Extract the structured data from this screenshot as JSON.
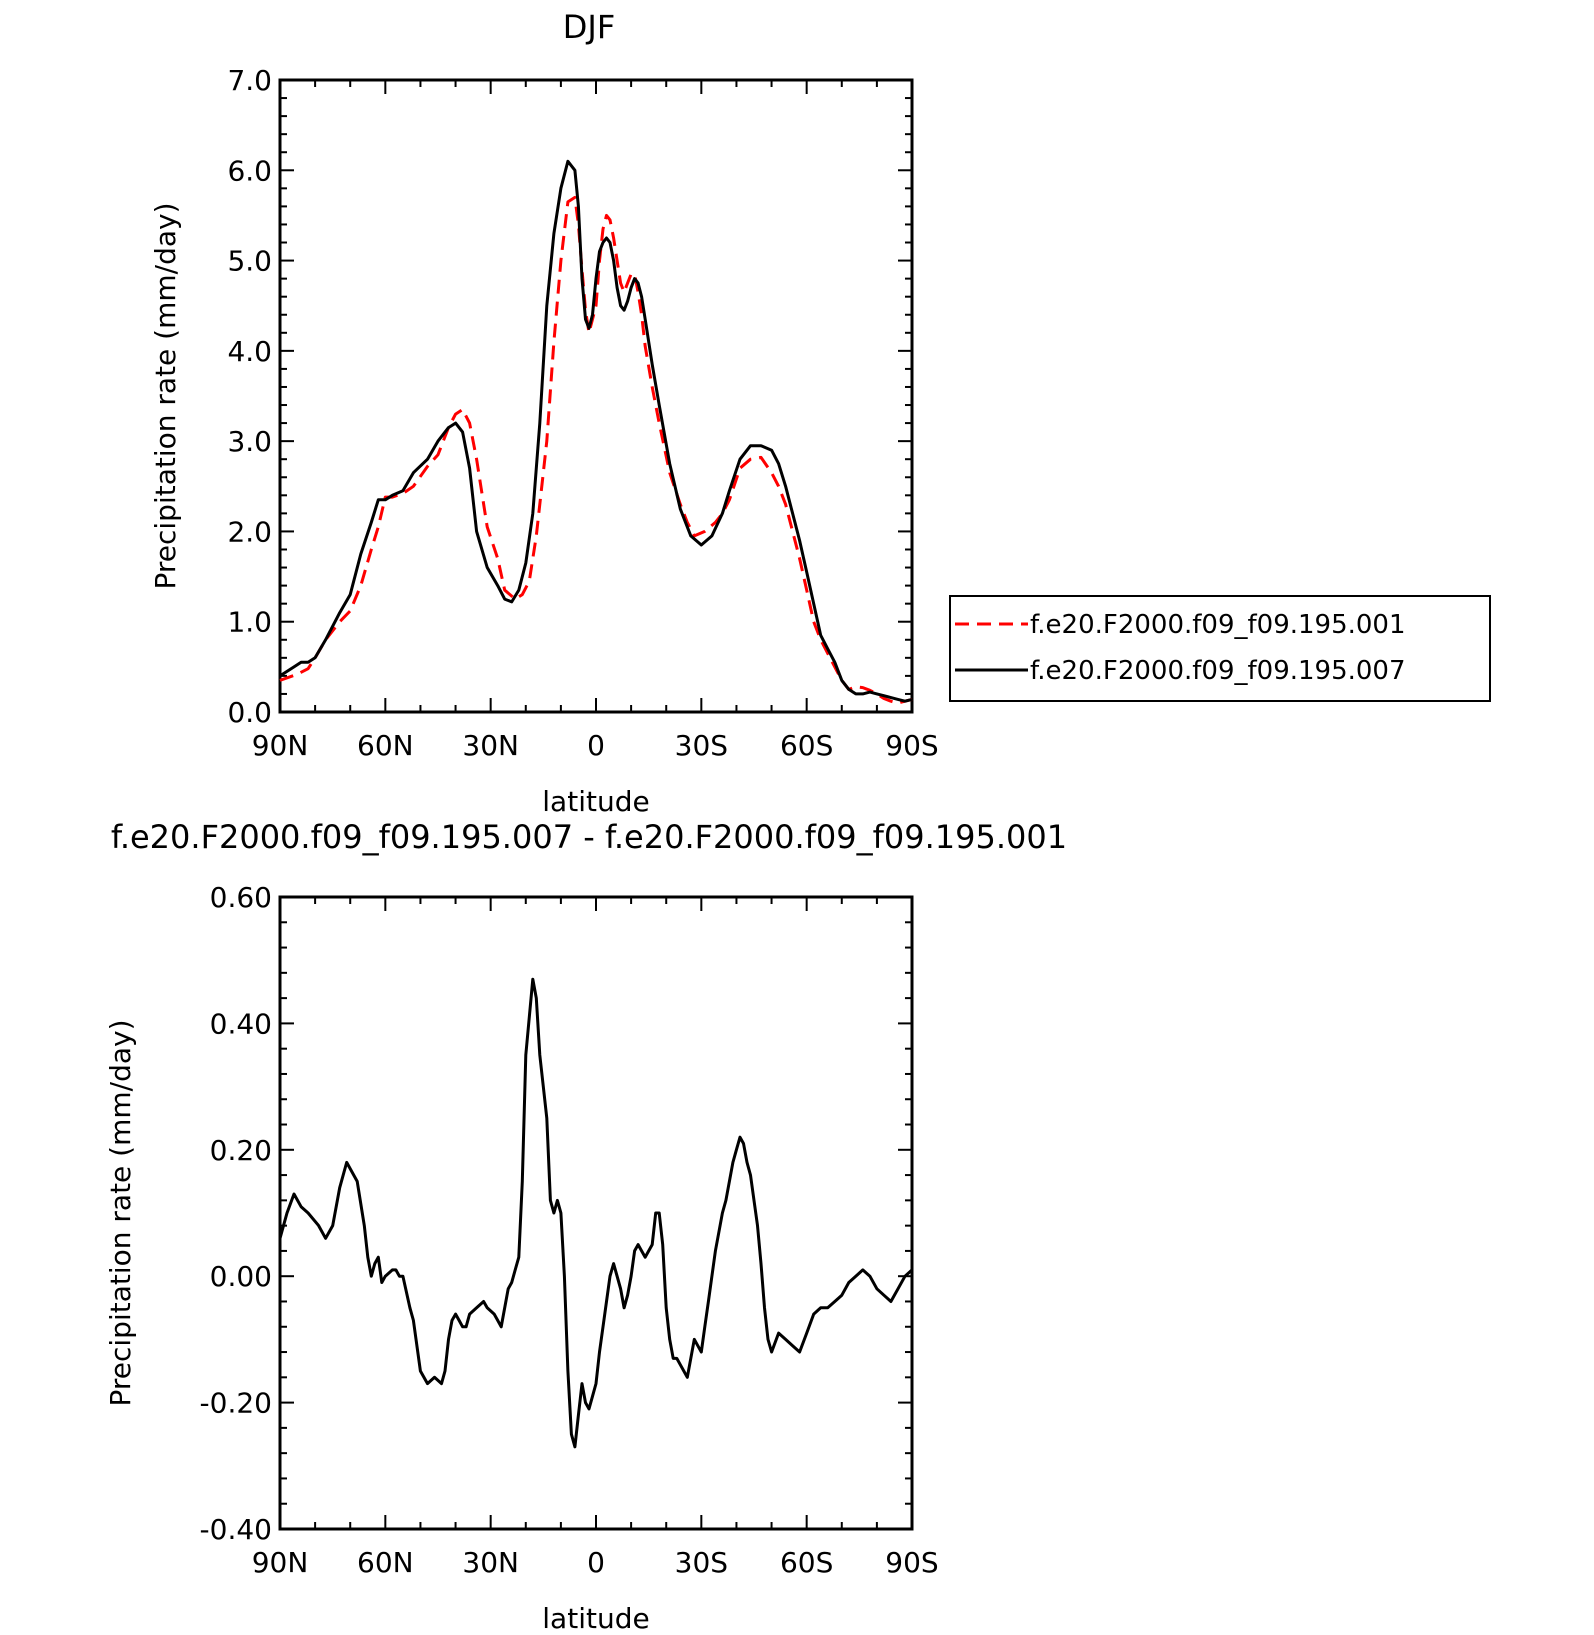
{
  "chart_data": [
    {
      "type": "line",
      "title": "DJF",
      "xlabel": "latitude",
      "ylabel": "Precipitation rate (mm/day)",
      "xlim": [
        90,
        -90
      ],
      "ylim": [
        0.0,
        7.0
      ],
      "xticks": [
        90,
        60,
        30,
        0,
        -30,
        -60,
        -90
      ],
      "xticklabels": [
        "90N",
        "60N",
        "30N",
        "0",
        "30S",
        "60S",
        "90S"
      ],
      "yticks": [
        0,
        1,
        2,
        3,
        4,
        5,
        6,
        7
      ],
      "yticklabels": [
        "0.0",
        "1.0",
        "2.0",
        "3.0",
        "4.0",
        "5.0",
        "6.0",
        "7.0"
      ],
      "legend_position": "right",
      "series": [
        {
          "name": "f.e20.F2000.f09_f09.195.001",
          "color": "#ff0000",
          "dash": "dashed",
          "x": [
            90,
            85,
            82,
            80,
            77,
            73,
            70,
            67,
            64,
            62,
            60,
            58,
            55,
            52,
            48,
            45,
            42,
            40,
            38,
            36,
            34,
            31,
            28,
            26,
            23,
            21,
            19,
            17,
            14,
            12,
            10,
            8,
            6,
            5,
            4,
            3,
            2,
            0,
            -1,
            -2,
            -3,
            -4,
            -5,
            -6,
            -7,
            -8,
            -9,
            -10,
            -11,
            -12,
            -13,
            -14,
            -16,
            -18,
            -21,
            -24,
            -26,
            -28,
            -31,
            -34,
            -36,
            -38,
            -41,
            -44,
            -47,
            -50,
            -52,
            -54,
            -56,
            -58,
            -60,
            -62,
            -64,
            -66,
            -68,
            -70,
            -72,
            -74,
            -76,
            -78,
            -80,
            -82,
            -84,
            -86,
            -88,
            -90
          ],
          "y": [
            0.35,
            0.42,
            0.48,
            0.6,
            0.8,
            1.0,
            1.12,
            1.4,
            1.8,
            2.05,
            2.38,
            2.38,
            2.42,
            2.5,
            2.72,
            2.85,
            3.15,
            3.3,
            3.35,
            3.2,
            2.8,
            2.05,
            1.7,
            1.35,
            1.25,
            1.3,
            1.45,
            1.95,
            3.0,
            4.1,
            5.0,
            5.65,
            5.7,
            5.4,
            4.9,
            4.45,
            4.2,
            4.5,
            5.0,
            5.35,
            5.5,
            5.45,
            5.25,
            5.0,
            4.75,
            4.65,
            4.75,
            4.85,
            4.85,
            4.65,
            4.4,
            4.05,
            3.6,
            3.2,
            2.65,
            2.3,
            2.1,
            1.95,
            2.0,
            2.1,
            2.2,
            2.35,
            2.7,
            2.8,
            2.82,
            2.65,
            2.5,
            2.3,
            2.0,
            1.7,
            1.35,
            1.0,
            0.8,
            0.65,
            0.5,
            0.35,
            0.25,
            0.28,
            0.27,
            0.24,
            0.2,
            0.15,
            0.12,
            0.1,
            0.12,
            0.14
          ]
        },
        {
          "name": "f.e20.F2000.f09_f09.195.007",
          "color": "#000000",
          "dash": "solid",
          "x": [
            90,
            86,
            84,
            82,
            80,
            77,
            73,
            70,
            67,
            64,
            62,
            60,
            58,
            55,
            52,
            48,
            45,
            42,
            40,
            38,
            36,
            34,
            31,
            28,
            26,
            24,
            22,
            20,
            18,
            16,
            14,
            12,
            10,
            8,
            6,
            5,
            4,
            3,
            2,
            1,
            0,
            -1,
            -2,
            -3,
            -4,
            -5,
            -6,
            -7,
            -8,
            -9,
            -10,
            -11,
            -12,
            -13,
            -14,
            -16,
            -18,
            -21,
            -24,
            -27,
            -30,
            -33,
            -36,
            -38,
            -41,
            -44,
            -47,
            -50,
            -52,
            -54,
            -56,
            -58,
            -60,
            -62,
            -64,
            -66,
            -68,
            -70,
            -72,
            -74,
            -76,
            -78,
            -80,
            -82,
            -84,
            -86,
            -88,
            -90
          ],
          "y": [
            0.4,
            0.5,
            0.55,
            0.55,
            0.6,
            0.8,
            1.1,
            1.3,
            1.75,
            2.1,
            2.35,
            2.35,
            2.4,
            2.45,
            2.65,
            2.8,
            3.0,
            3.15,
            3.2,
            3.1,
            2.7,
            2.0,
            1.6,
            1.4,
            1.25,
            1.22,
            1.35,
            1.65,
            2.2,
            3.2,
            4.5,
            5.3,
            5.8,
            6.1,
            6.0,
            5.6,
            4.8,
            4.35,
            4.25,
            4.4,
            4.8,
            5.1,
            5.2,
            5.25,
            5.2,
            5.0,
            4.7,
            4.5,
            4.45,
            4.55,
            4.7,
            4.8,
            4.75,
            4.6,
            4.35,
            3.85,
            3.4,
            2.75,
            2.25,
            1.95,
            1.85,
            1.95,
            2.2,
            2.45,
            2.8,
            2.95,
            2.95,
            2.9,
            2.75,
            2.5,
            2.2,
            1.9,
            1.55,
            1.2,
            0.85,
            0.7,
            0.55,
            0.35,
            0.25,
            0.2,
            0.2,
            0.22,
            0.2,
            0.18,
            0.16,
            0.14,
            0.12,
            0.14
          ]
        }
      ]
    },
    {
      "type": "line",
      "title": "f.e20.F2000.f09_f09.195.007 - f.e20.F2000.f09_f09.195.001",
      "xlabel": "latitude",
      "ylabel": "Precipitation rate (mm/day)",
      "xlim": [
        90,
        -90
      ],
      "ylim": [
        -0.4,
        0.6
      ],
      "xticks": [
        90,
        60,
        30,
        0,
        -30,
        -60,
        -90
      ],
      "xticklabels": [
        "90N",
        "60N",
        "30N",
        "0",
        "30S",
        "60S",
        "90S"
      ],
      "yticks": [
        -0.4,
        -0.2,
        0.0,
        0.2,
        0.4,
        0.6
      ],
      "yticklabels": [
        "-0.40",
        "-0.20",
        "0.00",
        "0.20",
        "0.40",
        "0.60"
      ],
      "series": [
        {
          "color": "#000000",
          "dash": "solid",
          "x": [
            90,
            88,
            86,
            84,
            82,
            79,
            77,
            75,
            73,
            71,
            68,
            66,
            65,
            64,
            63,
            62,
            61,
            60,
            58,
            57,
            56,
            55,
            53,
            52,
            50,
            48,
            46,
            44,
            43,
            42,
            41,
            40,
            39,
            38,
            37,
            36,
            34,
            32,
            31,
            29,
            28,
            27,
            26,
            25,
            24,
            23,
            22,
            21,
            20,
            18,
            17,
            16,
            14,
            13,
            12,
            11,
            10,
            9,
            8,
            7,
            6,
            5,
            4,
            3,
            2,
            1,
            0,
            -1,
            -2,
            -3,
            -4,
            -5,
            -6,
            -7,
            -8,
            -9,
            -10,
            -11,
            -12,
            -13,
            -14,
            -15,
            -16,
            -17,
            -18,
            -19,
            -20,
            -21,
            -22,
            -23,
            -24,
            -25,
            -26,
            -27,
            -28,
            -29,
            -30,
            -31,
            -32,
            -33,
            -34,
            -35,
            -36,
            -37,
            -38,
            -39,
            -40,
            -41,
            -42,
            -43,
            -44,
            -45,
            -46,
            -47,
            -48,
            -49,
            -50,
            -52,
            -54,
            -56,
            -58,
            -60,
            -62,
            -64,
            -66,
            -68,
            -70,
            -72,
            -74,
            -76,
            -78,
            -80,
            -82,
            -84,
            -86,
            -88,
            -90
          ],
          "y": [
            0.06,
            0.1,
            0.13,
            0.11,
            0.1,
            0.08,
            0.06,
            0.08,
            0.14,
            0.18,
            0.15,
            0.08,
            0.03,
            0.0,
            0.02,
            0.03,
            -0.01,
            0.0,
            0.01,
            0.01,
            0.0,
            0.0,
            -0.05,
            -0.07,
            -0.15,
            -0.17,
            -0.16,
            -0.17,
            -0.15,
            -0.1,
            -0.07,
            -0.06,
            -0.07,
            -0.08,
            -0.08,
            -0.06,
            -0.05,
            -0.04,
            -0.05,
            -0.06,
            -0.07,
            -0.08,
            -0.05,
            -0.02,
            -0.01,
            0.01,
            0.03,
            0.15,
            0.35,
            0.47,
            0.44,
            0.35,
            0.25,
            0.12,
            0.1,
            0.12,
            0.1,
            0.0,
            -0.15,
            -0.25,
            -0.27,
            -0.22,
            -0.17,
            -0.2,
            -0.21,
            -0.19,
            -0.17,
            -0.12,
            -0.08,
            -0.04,
            0.0,
            0.02,
            0.0,
            -0.02,
            -0.05,
            -0.03,
            0.0,
            0.04,
            0.05,
            0.04,
            0.03,
            0.04,
            0.05,
            0.1,
            0.1,
            0.05,
            -0.05,
            -0.1,
            -0.13,
            -0.13,
            -0.14,
            -0.15,
            -0.16,
            -0.13,
            -0.1,
            -0.11,
            -0.12,
            -0.08,
            -0.04,
            0.0,
            0.04,
            0.07,
            0.1,
            0.12,
            0.15,
            0.18,
            0.2,
            0.22,
            0.21,
            0.18,
            0.16,
            0.12,
            0.08,
            0.02,
            -0.05,
            -0.1,
            -0.12,
            -0.09,
            -0.1,
            -0.11,
            -0.12,
            -0.09,
            -0.06,
            -0.05,
            -0.05,
            -0.04,
            -0.03,
            -0.01,
            0.0,
            0.01,
            0.0,
            -0.02,
            -0.03,
            -0.04,
            -0.02,
            0.0,
            0.01
          ]
        }
      ]
    }
  ]
}
